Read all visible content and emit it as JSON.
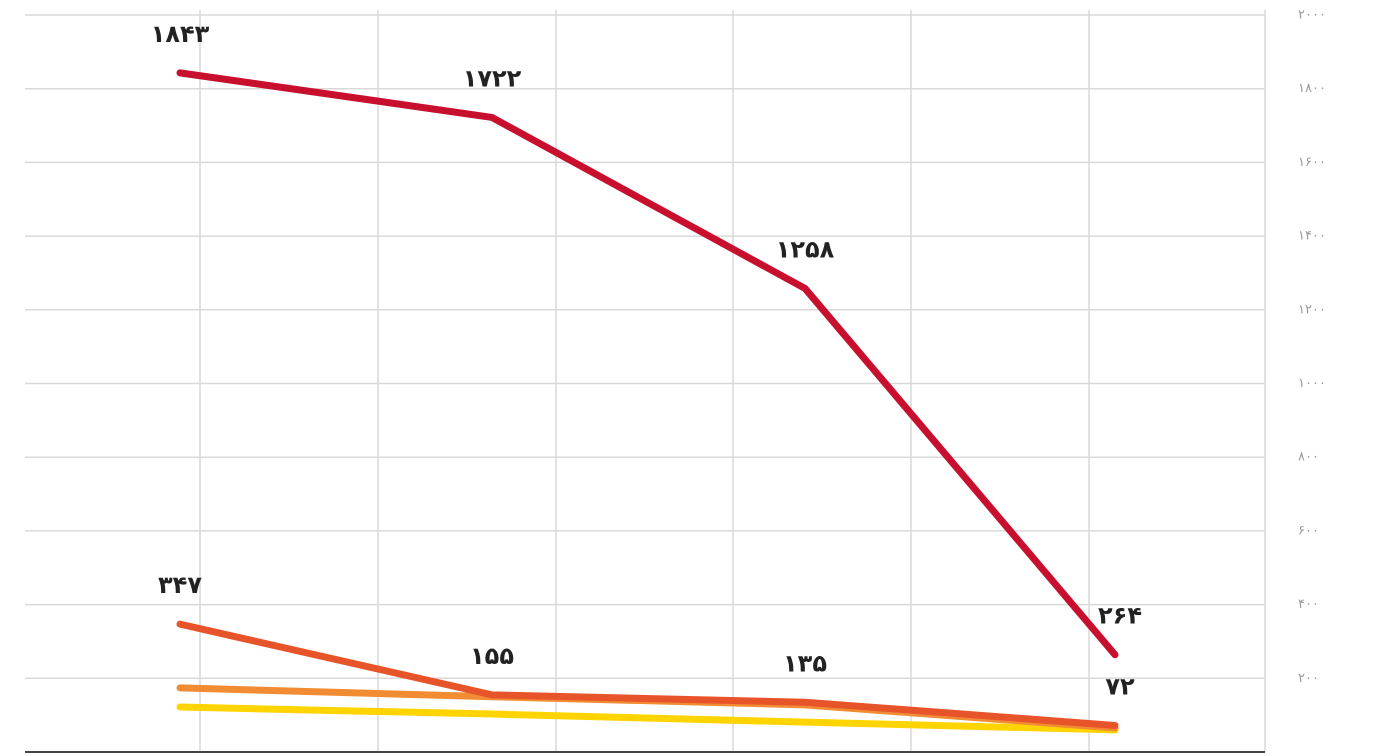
{
  "chart_data": {
    "type": "line",
    "categories": [
      null,
      null,
      null,
      null
    ],
    "series": [
      {
        "color": "#c8102e",
        "values": [
          1843,
          1722,
          1258,
          264
        ],
        "value_labels": [
          "۱۸۴۳",
          "۱۷۲۲",
          "۱۲۵۸",
          "۲۶۴"
        ]
      },
      {
        "color": "#e8542a",
        "values": [
          347,
          155,
          135,
          72
        ],
        "value_labels": [
          "۳۴۷",
          "۱۵۵",
          "۱۳۵",
          "۷۲"
        ]
      },
      {
        "color": "#f28c33",
        "values": [
          174,
          150,
          128,
          65
        ]
      },
      {
        "color": "#ffd400",
        "values": [
          122,
          103,
          81,
          60
        ]
      }
    ],
    "ylim": [
      0,
      2000
    ],
    "yticks": [
      {
        "value": 200,
        "label": "۲۰۰"
      },
      {
        "value": 400,
        "label": "۴۰۰"
      },
      {
        "value": 600,
        "label": "۶۰۰"
      },
      {
        "value": 800,
        "label": "۸۰۰"
      },
      {
        "value": 1000,
        "label": "۱۰۰۰"
      },
      {
        "value": 1200,
        "label": "۱۲۰۰"
      },
      {
        "value": 1400,
        "label": "۱۴۰۰"
      },
      {
        "value": 1600,
        "label": "۱۶۰۰"
      },
      {
        "value": 1800,
        "label": "۱۸۰۰"
      },
      {
        "value": 2000,
        "label": "۲۰۰۰"
      }
    ],
    "grid": true
  }
}
